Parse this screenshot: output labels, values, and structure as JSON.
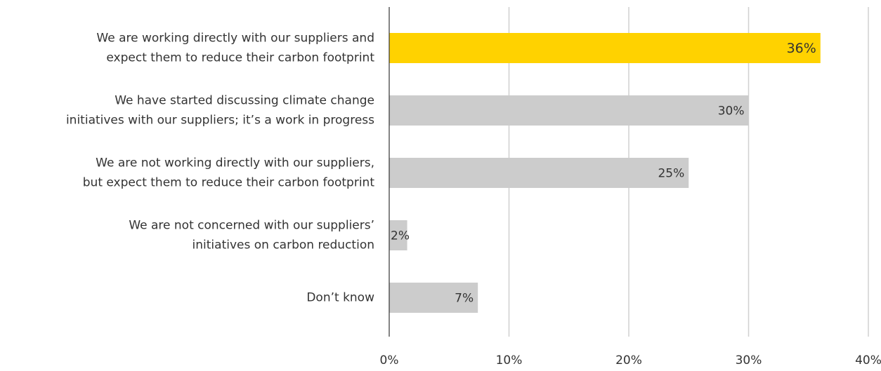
{
  "chart_data": {
    "type": "hbar",
    "categories": [
      [
        "We are working directly with our suppliers and",
        "expect them to reduce their carbon footprint"
      ],
      [
        "We have started discussing climate change",
        "initiatives with our suppliers; it’s a work in progress"
      ],
      [
        "We are not working directly with our suppliers,",
        "but expect them to reduce their carbon footprint"
      ],
      [
        "We are not concerned with our suppliers’",
        "initiatives on carbon reduction"
      ],
      [
        "Don’t know"
      ]
    ],
    "values": [
      36,
      30,
      25,
      1.5,
      7.4
    ],
    "value_labels": [
      "36%",
      "30%",
      "25%",
      "2%",
      "7%"
    ],
    "colors": [
      "#ffd200",
      "#cccccc",
      "#cccccc",
      "#cccccc",
      "#cccccc"
    ],
    "xlim": [
      0,
      40
    ],
    "xticks": [
      {
        "value": 0,
        "label": "0%"
      },
      {
        "value": 10,
        "label": "10%"
      },
      {
        "value": 20,
        "label": "20%"
      },
      {
        "value": 30,
        "label": "30%"
      },
      {
        "value": 40,
        "label": "40%"
      }
    ],
    "grid": true
  }
}
